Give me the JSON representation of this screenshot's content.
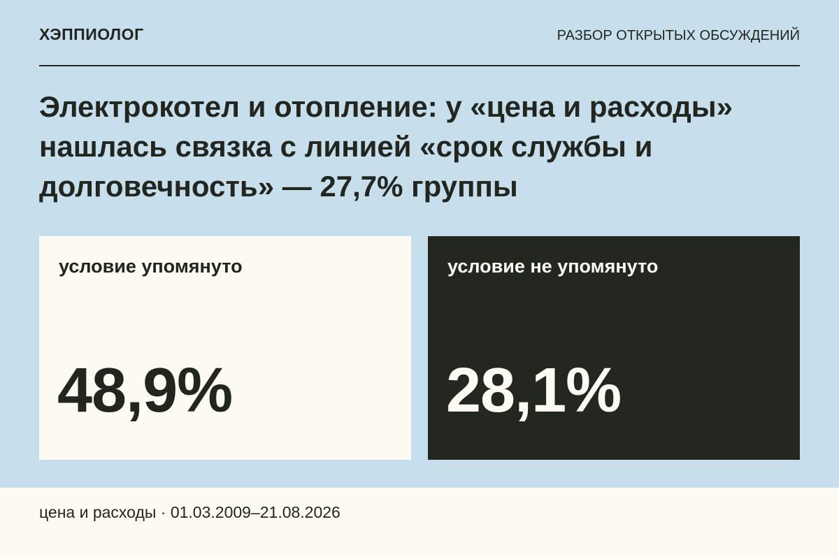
{
  "header": {
    "brand": "ХЭППИОЛОГ",
    "section": "РАЗБОР ОТКРЫТЫХ ОБСУЖДЕНИЙ"
  },
  "title": "Электрокотел и отопление: у «цена и расходы» нашлась связка с линией «срок службы и долговечность» — 27,7% группы",
  "cards": [
    {
      "label": "условие упомянуто",
      "value": "48,9%"
    },
    {
      "label": "условие не упомянуто",
      "value": "28,1%"
    }
  ],
  "footer": "цена и расходы · 01.03.2009–21.08.2026"
}
